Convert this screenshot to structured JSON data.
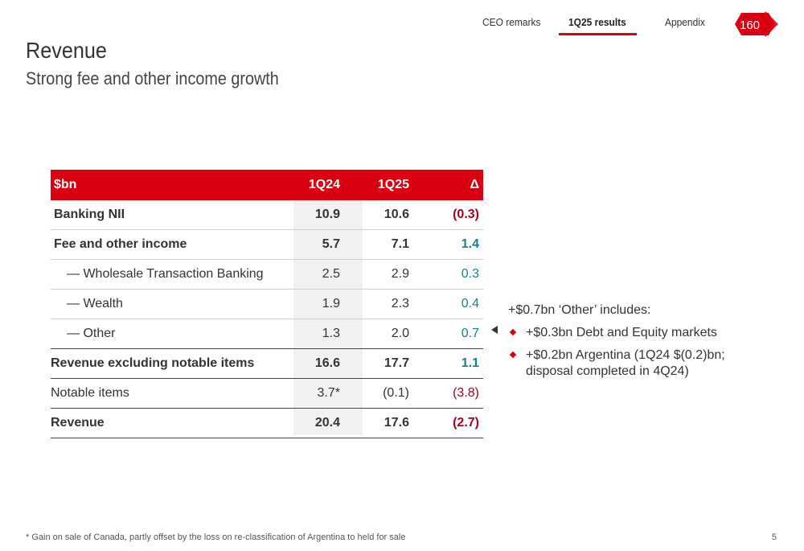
{
  "nav": {
    "items": [
      "CEO remarks",
      "1Q25 results",
      "Appendix"
    ],
    "active_color": "#db0011"
  },
  "logo": {
    "text": "160"
  },
  "page": {
    "title": "Revenue",
    "subtitle": "Strong fee and other income growth"
  },
  "table": {
    "headers": [
      "$bn",
      "1Q24",
      "1Q25",
      "Δ"
    ],
    "rows": [
      {
        "label": "Banking NII",
        "q124": "10.9",
        "q125": "10.6",
        "delta": "(0.3)"
      },
      {
        "label": "Fee and other income",
        "q124": "5.7",
        "q125": "7.1",
        "delta": "1.4"
      },
      {
        "label": "— Wholesale Transaction Banking",
        "q124": "2.5",
        "q125": "2.9",
        "delta": "0.3"
      },
      {
        "label": "— Wealth",
        "q124": "1.9",
        "q125": "2.3",
        "delta": "0.4"
      },
      {
        "label": "— Other",
        "q124": "1.3",
        "q125": "2.0",
        "delta": "0.7"
      },
      {
        "label": "Revenue excluding notable items",
        "q124": "16.6",
        "q125": "17.7",
        "delta": "1.1"
      },
      {
        "label": "Notable items",
        "q124": "3.7*",
        "q125": "(0.1)",
        "delta": "(3.8)"
      },
      {
        "label": "Revenue",
        "q124": "20.4",
        "q125": "17.6",
        "delta": "(2.7)"
      }
    ]
  },
  "notes": {
    "heading": "+$0.7bn ‘Other’ includes:",
    "bullets": [
      "+$0.3bn Debt and Equity markets",
      "+$0.2bn Argentina (1Q24 $(0.2)bn; disposal completed in 4Q24)"
    ]
  },
  "footer": {
    "footnote": "* Gain on sale of Canada, partly offset by the loss on re-classification of Argentina to held for sale",
    "page_number": "5"
  }
}
